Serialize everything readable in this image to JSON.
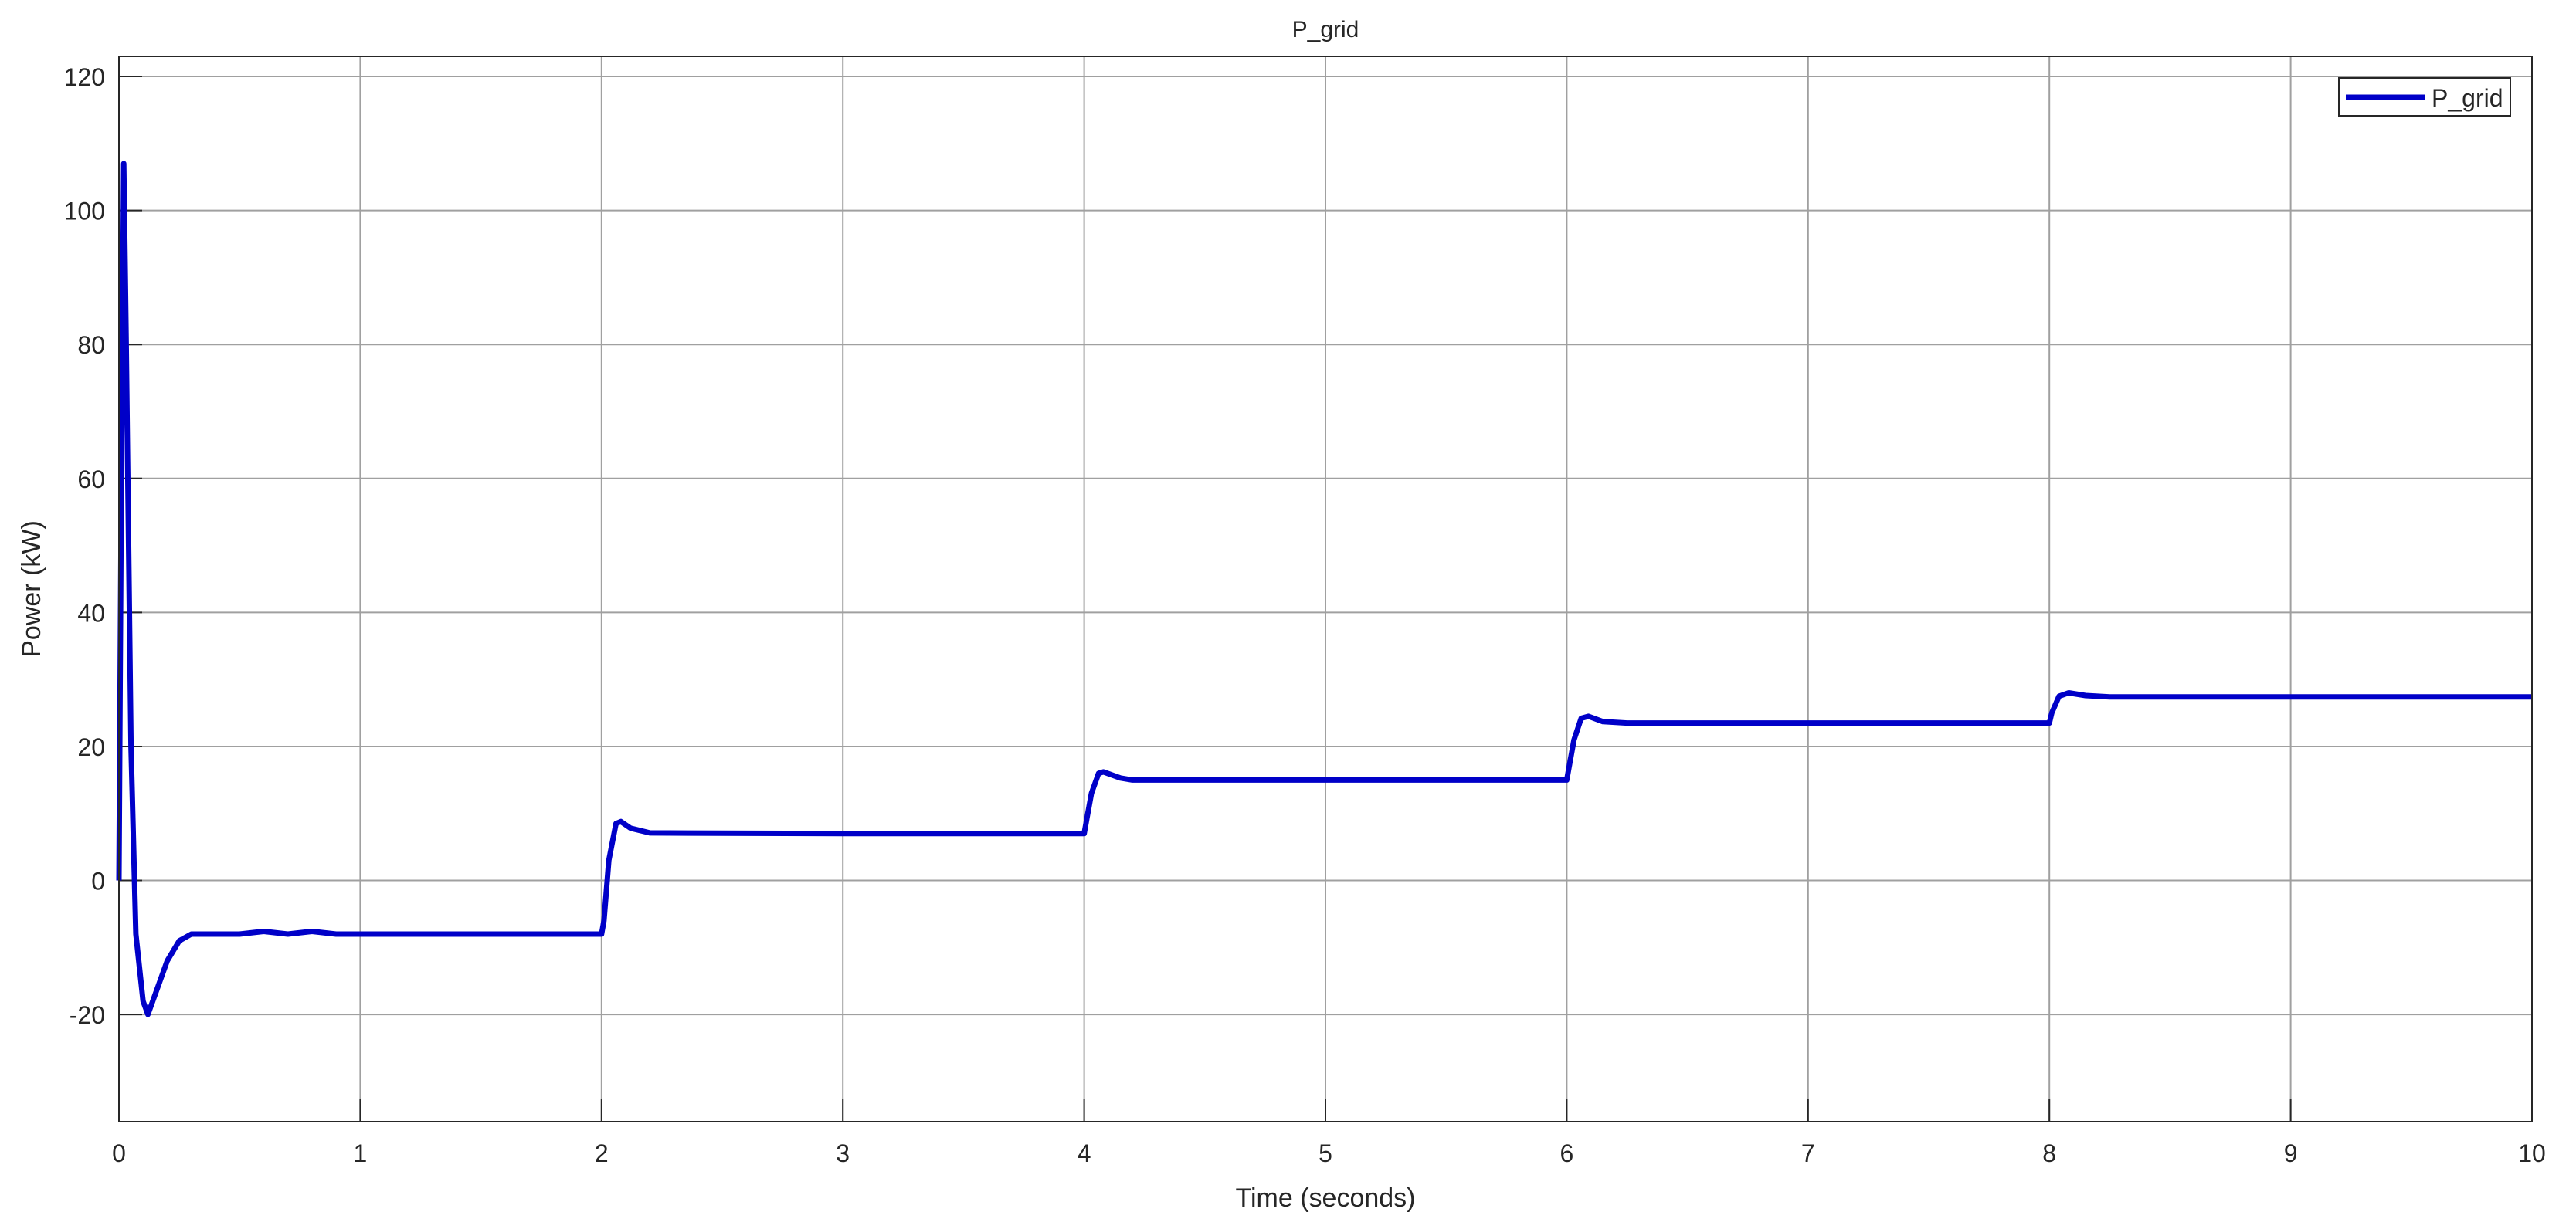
{
  "chart_data": {
    "type": "line",
    "title": "P_grid",
    "xlabel": "Time (seconds)",
    "ylabel": "Power (kW)",
    "xlim": [
      0,
      10
    ],
    "ylim": [
      -36,
      123
    ],
    "xticks": [
      0,
      1,
      2,
      3,
      4,
      5,
      6,
      7,
      8,
      9,
      10
    ],
    "yticks": [
      -20,
      0,
      20,
      40,
      60,
      80,
      100,
      120
    ],
    "xtick_labels": [
      "0",
      "1",
      "2",
      "3",
      "4",
      "5",
      "6",
      "7",
      "8",
      "9",
      "10"
    ],
    "ytick_labels": [
      "-20",
      "0",
      "20",
      "40",
      "60",
      "80",
      "100",
      "120"
    ],
    "grid": true,
    "legend_position": "top-right",
    "series": [
      {
        "name": "P_grid",
        "color": "#0000c8",
        "x": [
          0,
          0.01,
          0.02,
          0.03,
          0.05,
          0.07,
          0.1,
          0.12,
          0.15,
          0.2,
          0.25,
          0.3,
          0.5,
          0.6,
          0.7,
          0.8,
          0.9,
          1,
          1.5,
          2,
          2.01,
          2.03,
          2.06,
          2.08,
          2.12,
          2.2,
          3,
          4,
          4.01,
          4.03,
          4.06,
          4.08,
          4.15,
          4.2,
          5,
          6,
          6.01,
          6.03,
          6.06,
          6.09,
          6.15,
          6.25,
          7,
          8,
          8.01,
          8.04,
          8.08,
          8.15,
          8.25,
          9,
          10
        ],
        "y": [
          0,
          60,
          107,
          80,
          20,
          -8,
          -18,
          -20,
          -17,
          -12,
          -9,
          -8,
          -8,
          -7.6,
          -8,
          -7.6,
          -8,
          -8,
          -8,
          -8,
          -6,
          3,
          8.5,
          8.8,
          7.8,
          7.1,
          7,
          7,
          9,
          13,
          16,
          16.2,
          15.3,
          15,
          15,
          15,
          17,
          21,
          24.2,
          24.5,
          23.7,
          23.5,
          23.5,
          23.5,
          25,
          27.5,
          28,
          27.6,
          27.4,
          27.4,
          27.4
        ]
      }
    ]
  }
}
